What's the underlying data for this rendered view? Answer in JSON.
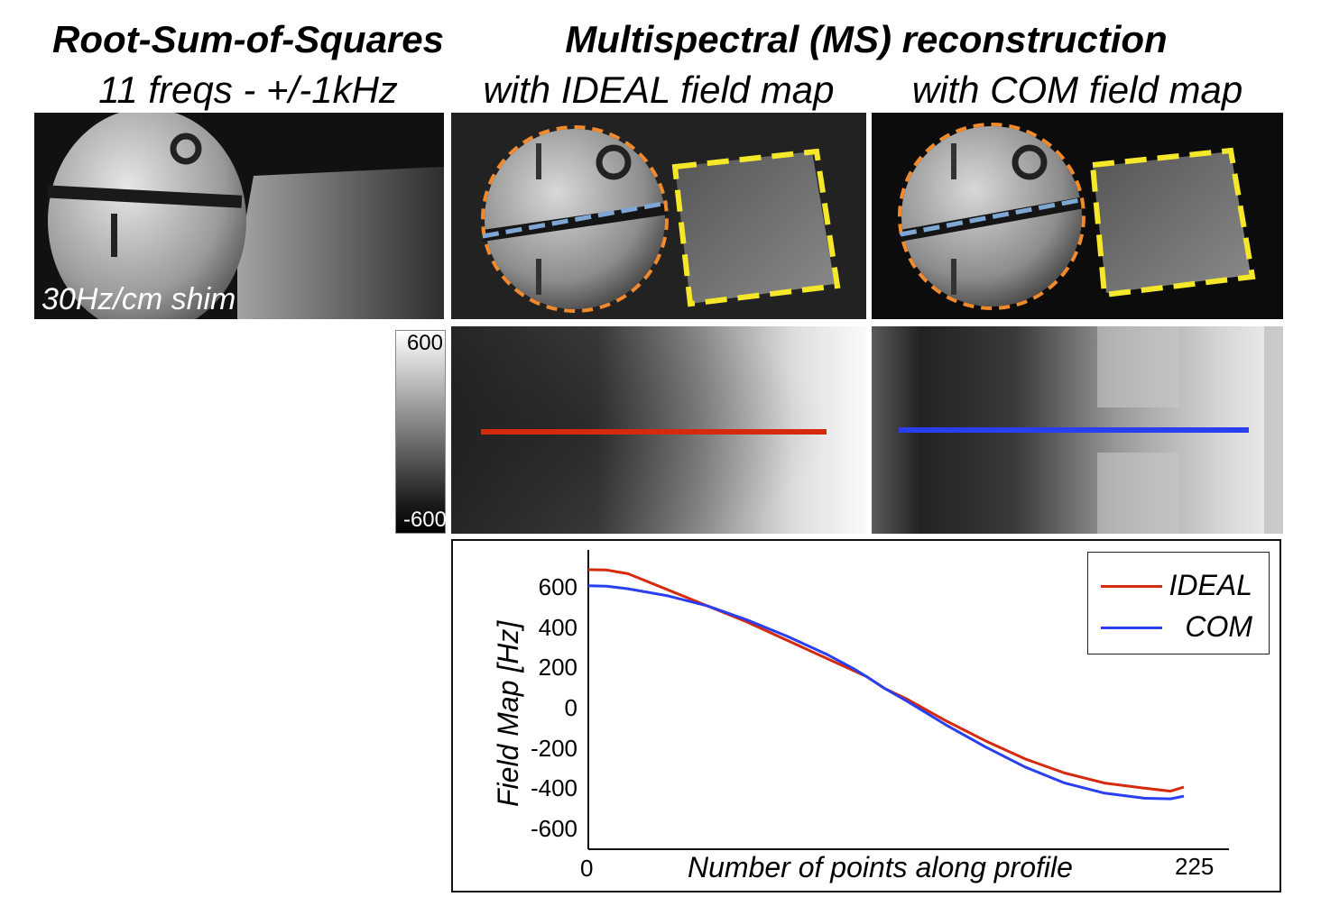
{
  "headers": {
    "left_title": "Root-Sum-of-Squares",
    "left_subtitle": "11 freqs - +/-1kHz",
    "right_title": "Multispectral (MS) reconstruction",
    "mid_subtitle": "with IDEAL field map",
    "right_subtitle": "with COM field map"
  },
  "rss_panel": {
    "annotation": "30Hz/cm shim"
  },
  "colorbar": {
    "max_label": "600",
    "min_label": "-600"
  },
  "colors": {
    "ideal": "#d42a0e",
    "com": "#2a3ff0",
    "roi_circle": "#f08a2c",
    "roi_square": "#f5e82a",
    "profile_line": "#7fa7d6"
  },
  "chart_data": {
    "type": "line",
    "xlabel": "Number of points along profile",
    "ylabel": "Field Map [Hz]",
    "x_tick_labels": [
      "0",
      "225"
    ],
    "y_tick_labels": [
      "600",
      "400",
      "200",
      "0",
      "-200",
      "-400",
      "-600"
    ],
    "xlim": [
      0,
      250
    ],
    "ylim": [
      -680,
      760
    ],
    "legend_position": "top-right",
    "series": [
      {
        "name": "IDEAL",
        "color": "#d42a0e",
        "x": [
          0,
          7,
          15,
          30,
          45,
          60,
          75,
          90,
          105,
          112,
          120,
          135,
          150,
          165,
          180,
          195,
          210,
          220,
          225
        ],
        "values": [
          690,
          688,
          670,
          590,
          510,
          430,
          340,
          250,
          160,
          100,
          50,
          -60,
          -160,
          -250,
          -320,
          -370,
          -395,
          -410,
          -390
        ]
      },
      {
        "name": "COM",
        "color": "#2a3ff0",
        "x": [
          0,
          7,
          15,
          30,
          45,
          60,
          75,
          90,
          100,
          105,
          112,
          120,
          135,
          150,
          165,
          180,
          195,
          210,
          220,
          225
        ],
        "values": [
          610,
          608,
          595,
          560,
          510,
          440,
          360,
          270,
          200,
          160,
          100,
          40,
          -80,
          -190,
          -290,
          -370,
          -420,
          -445,
          -448,
          -435
        ]
      }
    ]
  }
}
